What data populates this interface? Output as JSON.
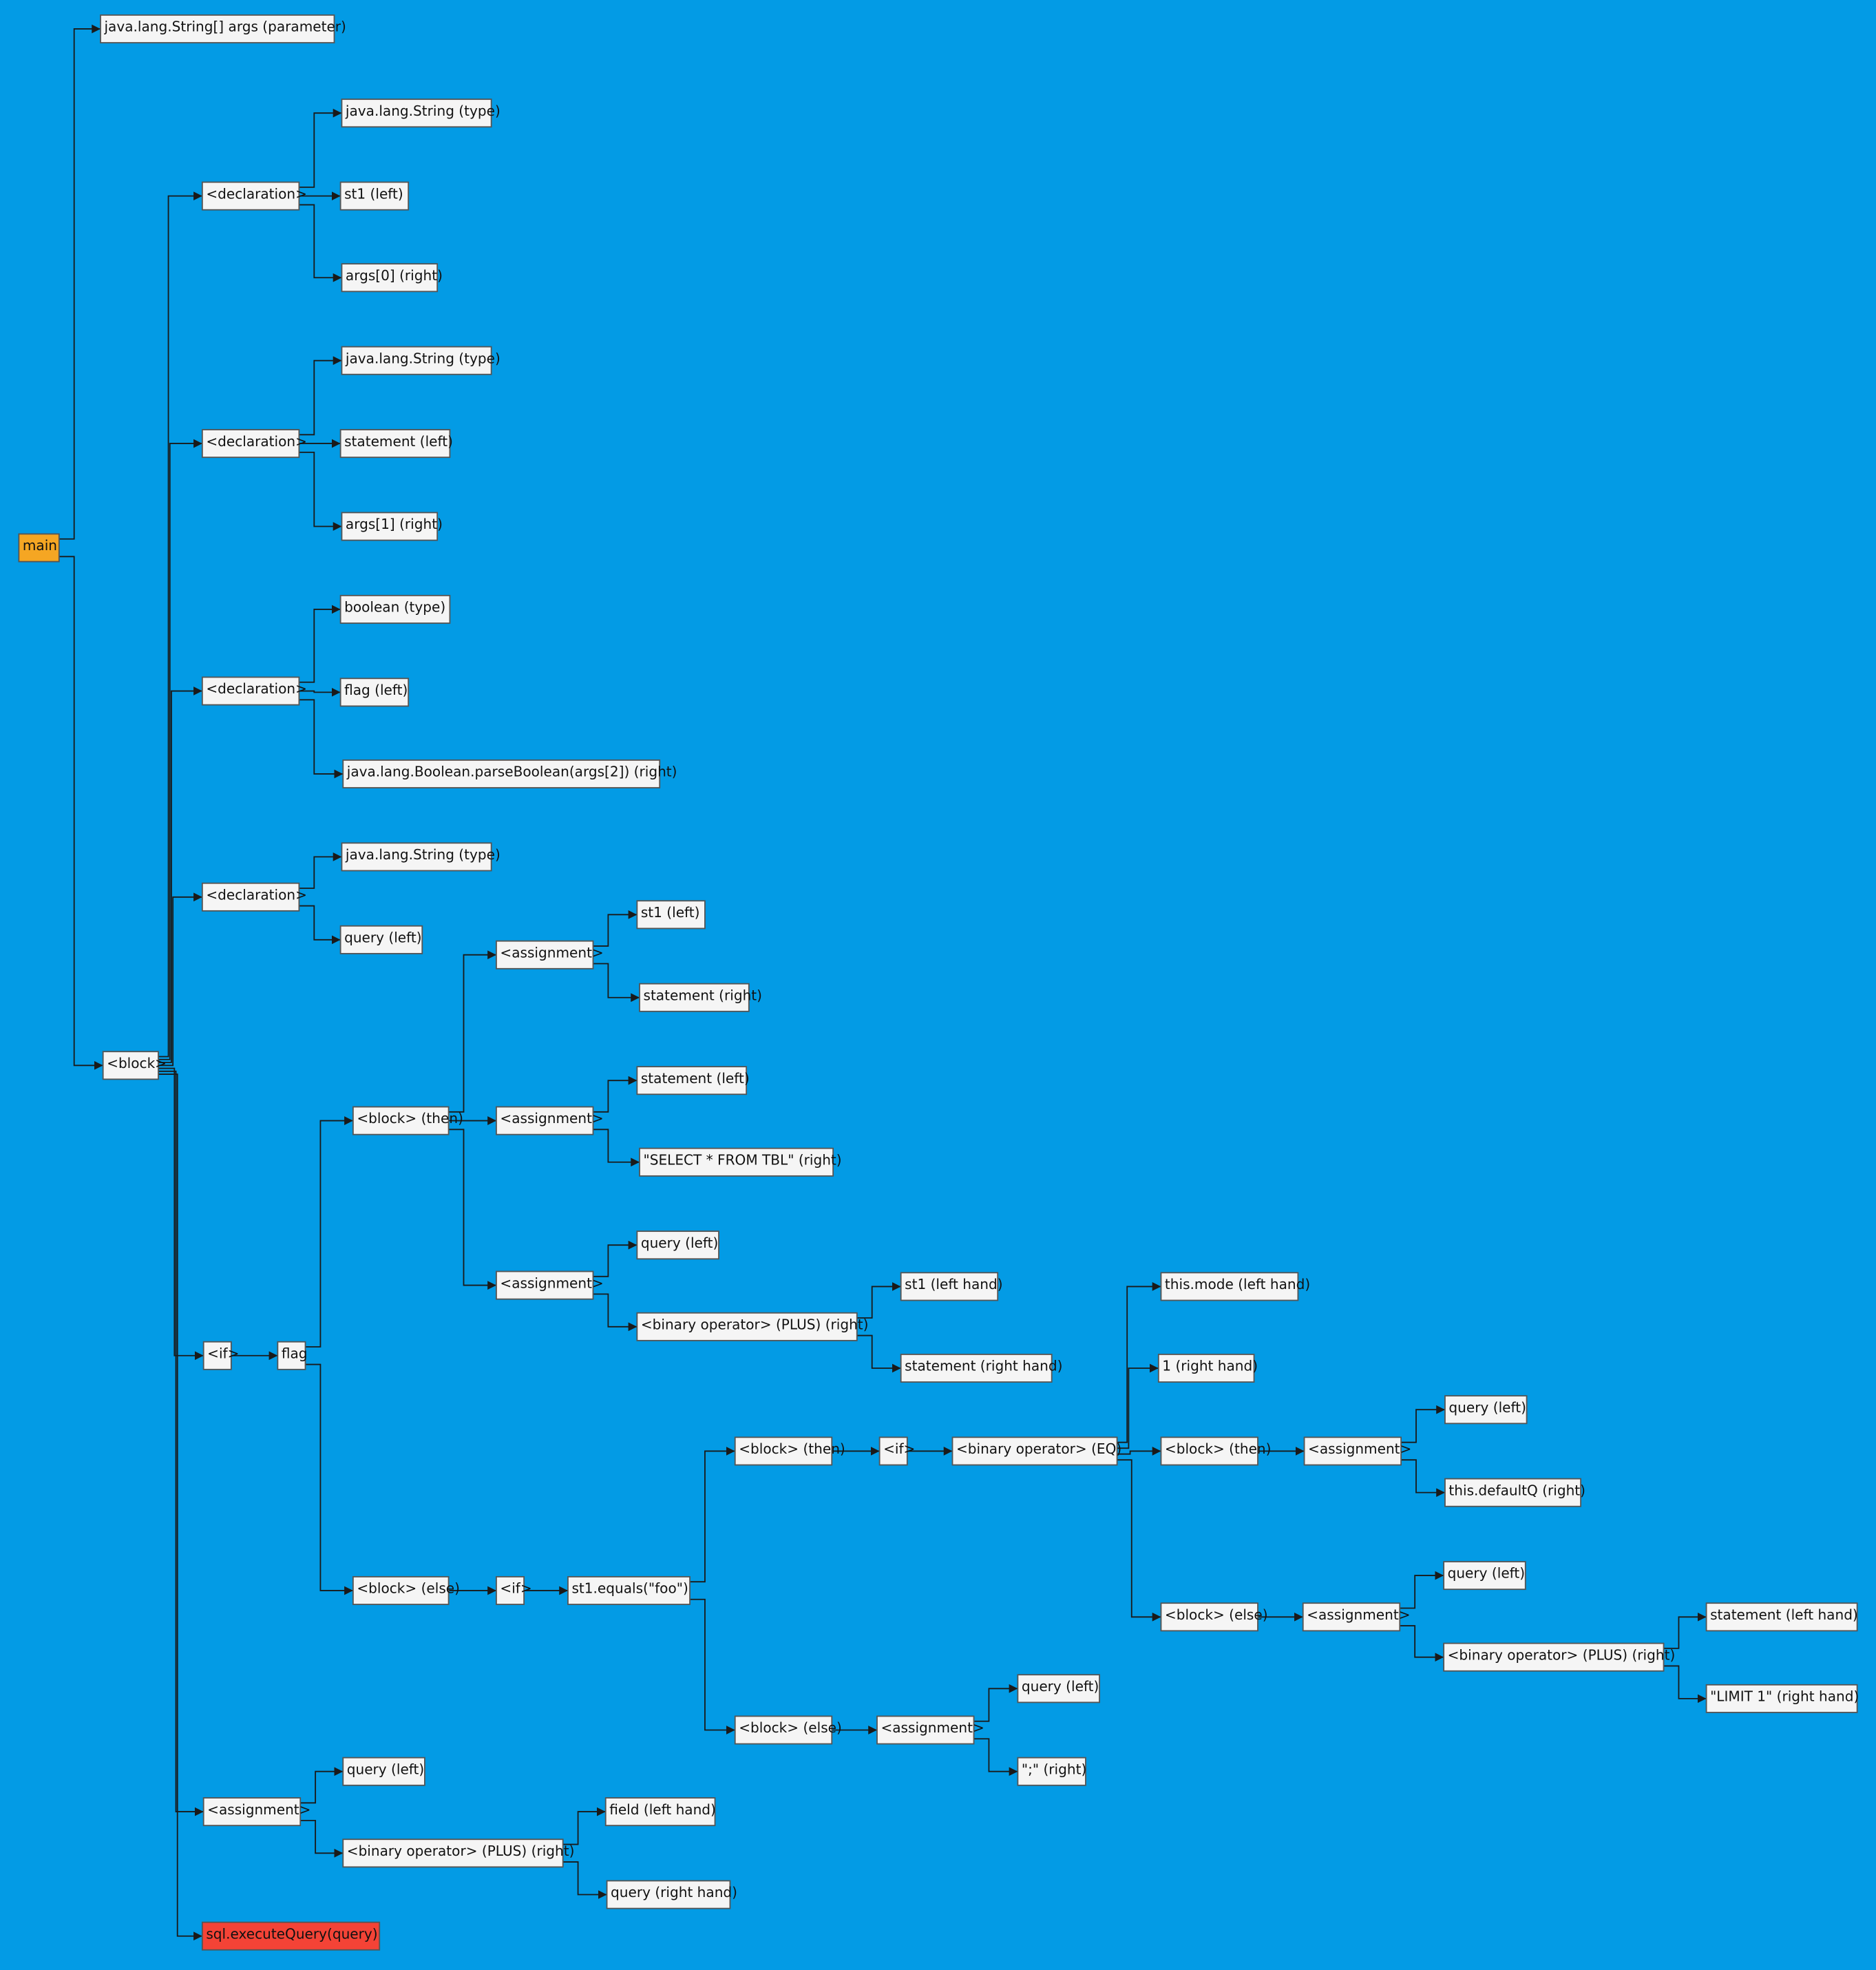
{
  "nodes": [
    {
      "label": "main"
    },
    {
      "label": "java.lang.String[] args (parameter)"
    },
    {
      "label": "<block>"
    },
    {
      "label": "<declaration>"
    },
    {
      "label": "java.lang.String (type)"
    },
    {
      "label": "st1 (left)"
    },
    {
      "label": "args[0] (right)"
    },
    {
      "label": "<declaration>"
    },
    {
      "label": "java.lang.String (type)"
    },
    {
      "label": "statement (left)"
    },
    {
      "label": "args[1] (right)"
    },
    {
      "label": "<declaration>"
    },
    {
      "label": "boolean (type)"
    },
    {
      "label": "flag (left)"
    },
    {
      "label": "java.lang.Boolean.parseBoolean(args[2]) (right)"
    },
    {
      "label": "<declaration>"
    },
    {
      "label": "java.lang.String (type)"
    },
    {
      "label": "query (left)"
    },
    {
      "label": "<if>"
    },
    {
      "label": "flag"
    },
    {
      "label": "<block> (then)"
    },
    {
      "label": "<assignment>"
    },
    {
      "label": "st1 (left)"
    },
    {
      "label": "statement (right)"
    },
    {
      "label": "<assignment>"
    },
    {
      "label": "statement (left)"
    },
    {
      "label": "\"SELECT * FROM TBL\" (right)"
    },
    {
      "label": "<assignment>"
    },
    {
      "label": "query (left)"
    },
    {
      "label": "<binary operator> (PLUS) (right)"
    },
    {
      "label": "st1 (left hand)"
    },
    {
      "label": "statement (right hand)"
    },
    {
      "label": "<block> (else)"
    },
    {
      "label": "<if>"
    },
    {
      "label": "st1.equals(\"foo\")"
    },
    {
      "label": "<block> (then)"
    },
    {
      "label": "<if>"
    },
    {
      "label": "<binary operator> (EQ)"
    },
    {
      "label": "this.mode (left hand)"
    },
    {
      "label": "1 (right hand)"
    },
    {
      "label": "<block> (then)"
    },
    {
      "label": "<assignment>"
    },
    {
      "label": "query (left)"
    },
    {
      "label": "this.defaultQ (right)"
    },
    {
      "label": "<block> (else)"
    },
    {
      "label": "<assignment>"
    },
    {
      "label": "query (left)"
    },
    {
      "label": "<binary operator> (PLUS) (right)"
    },
    {
      "label": "statement (left hand)"
    },
    {
      "label": "\"LIMIT 1\" (right hand)"
    },
    {
      "label": "<block> (else)"
    },
    {
      "label": "<assignment>"
    },
    {
      "label": "query (left)"
    },
    {
      "label": "\";\" (right)"
    },
    {
      "label": "<assignment>"
    },
    {
      "label": "query (left)"
    },
    {
      "label": "<binary operator> (PLUS) (right)"
    },
    {
      "label": "field (left hand)"
    },
    {
      "label": "query (right hand)"
    },
    {
      "label": "sql.executeQuery(query)"
    }
  ]
}
